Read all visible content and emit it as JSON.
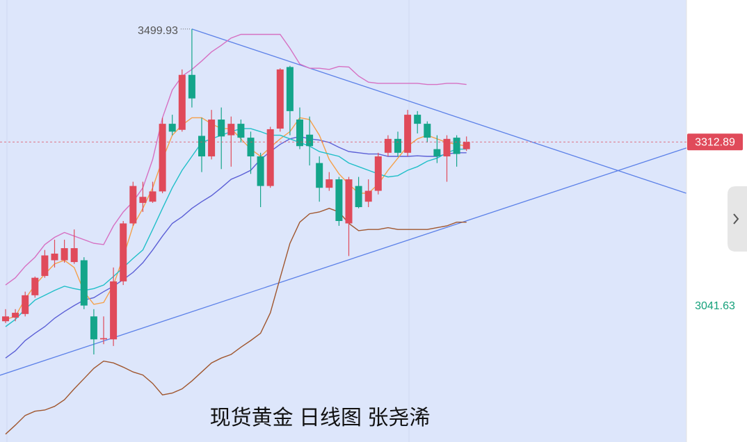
{
  "chart_data": {
    "type": "candlestick",
    "title": "现货黄金 日线图 张尧浠",
    "ylim": [
      2816,
      3548
    ],
    "up_color": "#e04a5a",
    "down_color": "#14a58a",
    "open": [
      3016,
      3022,
      3028,
      3059,
      3091,
      3117,
      3117,
      3114,
      3117,
      3024,
      2986,
      2986,
      3082,
      3178,
      3212,
      3214,
      3231,
      3343,
      3333,
      3424,
      3323,
      3289,
      3350,
      3324,
      3343,
      3320,
      3289,
      3240,
      3335,
      3437,
      3350,
      3325,
      3278,
      3237,
      3251,
      3178,
      3240,
      3214,
      3232,
      3295,
      3318,
      3295,
      3358,
      3343,
      3301,
      3289,
      3320,
      3301
    ],
    "high": [
      3036,
      3036,
      3065,
      3090,
      3134,
      3151,
      3151,
      3168,
      3122,
      3036,
      3024,
      3105,
      3182,
      3247,
      3247,
      3247,
      3353,
      3358,
      3433,
      3499.93,
      3353,
      3366,
      3370,
      3355,
      3350,
      3330,
      3295,
      3338,
      3435,
      3439,
      3370,
      3355,
      3289,
      3263,
      3255,
      3255,
      3255,
      3251,
      3295,
      3324,
      3330,
      3366,
      3364,
      3347,
      3324,
      3324,
      3324,
      3322
    ],
    "low": [
      3013,
      3016,
      3024,
      3055,
      3088,
      3105,
      3113,
      3111,
      3036,
      2961,
      2978,
      2975,
      3076,
      3174,
      3197,
      3212,
      3228,
      3324,
      3330,
      3370,
      3263,
      3284,
      3268,
      3272,
      3312,
      3260,
      3205,
      3237,
      3330,
      3324,
      3301,
      3274,
      3214,
      3232,
      3174,
      3124,
      3203,
      3205,
      3226,
      3289,
      3289,
      3289,
      3327,
      3312,
      3278,
      3247,
      3272,
      3298
    ],
    "close": [
      3024,
      3030,
      3059,
      3088,
      3125,
      3128,
      3137,
      3137,
      3042,
      2986,
      2988,
      3082,
      3178,
      3240,
      3222,
      3231,
      3343,
      3330,
      3424,
      3385,
      3289,
      3350,
      3322,
      3343,
      3320,
      3289,
      3240,
      3334,
      3433,
      3364,
      3306,
      3306,
      3237,
      3251,
      3182,
      3251,
      3205,
      3232,
      3289,
      3318,
      3295,
      3358,
      3343,
      3320,
      3289,
      3318,
      3293,
      3312.89
    ],
    "series": [
      {
        "color": "#d670c2",
        "values": [
          3076,
          3088,
          3107,
          3122,
          3143,
          3155,
          3163,
          3157,
          3151,
          3145,
          3143,
          3174,
          3197,
          3214,
          3237,
          3284,
          3353,
          3399,
          3422,
          3433,
          3447,
          3462,
          3473,
          3485,
          3491,
          3491,
          3491,
          3491,
          3491,
          3468,
          3442,
          3435,
          3435,
          3433,
          3438,
          3437,
          3422,
          3412,
          3410,
          3410,
          3410,
          3410,
          3410,
          3408,
          3408,
          3410,
          3410,
          3408
        ]
      },
      {
        "color": "#a0562e",
        "values": [
          2829,
          2844,
          2860,
          2867,
          2869,
          2875,
          2886,
          2904,
          2921,
          2938,
          2950,
          2947,
          2940,
          2932,
          2927,
          2913,
          2894,
          2897,
          2904,
          2917,
          2932,
          2947,
          2955,
          2961,
          2973,
          2984,
          2996,
          3030,
          3088,
          3145,
          3180,
          3194,
          3197,
          3203,
          3197,
          3178,
          3166,
          3168,
          3168,
          3171,
          3168,
          3168,
          3168,
          3168,
          3171,
          3174,
          3180,
          3180
        ]
      },
      {
        "color": "#5b5fd6",
        "values": [
          2955,
          2967,
          2984,
          2996,
          3007,
          3021,
          3032,
          3042,
          3051,
          3055,
          3065,
          3074,
          3085,
          3097,
          3113,
          3134,
          3157,
          3178,
          3189,
          3203,
          3214,
          3224,
          3237,
          3251,
          3258,
          3266,
          3284,
          3297,
          3309,
          3318,
          3322,
          3318,
          3316,
          3312,
          3304,
          3297,
          3295,
          3293,
          3293,
          3289,
          3289,
          3289,
          3290,
          3289,
          3289,
          3293,
          3295,
          3295
        ]
      },
      {
        "color": "#f5a04a",
        "values": [
          3019,
          3024,
          3053,
          3076,
          3094,
          3111,
          3117,
          3105,
          3065,
          3044,
          3047,
          3076,
          3122,
          3174,
          3203,
          3237,
          3284,
          3324,
          3341,
          3353,
          3353,
          3343,
          3335,
          3335,
          3318,
          3301,
          3289,
          3304,
          3318,
          3330,
          3353,
          3350,
          3324,
          3284,
          3260,
          3243,
          3228,
          3228,
          3243,
          3266,
          3286,
          3306,
          3318,
          3324,
          3318,
          3312,
          3309,
          3306
        ]
      },
      {
        "color": "#20bfc8",
        "values": [
          3007,
          3019,
          3036,
          3051,
          3059,
          3067,
          3074,
          3070,
          3067,
          3070,
          3076,
          3090,
          3105,
          3120,
          3134,
          3168,
          3203,
          3237,
          3266,
          3289,
          3312,
          3318,
          3324,
          3330,
          3335,
          3335,
          3330,
          3324,
          3324,
          3318,
          3312,
          3306,
          3297,
          3293,
          3289,
          3278,
          3272,
          3266,
          3260,
          3255,
          3257,
          3266,
          3272,
          3281,
          3286,
          3295,
          3301,
          3301
        ]
      }
    ],
    "trendlines": [
      {
        "color": "#5b80e8",
        "x": [
          19,
          69.4
        ],
        "values": [
          3499.93,
          3228
        ]
      },
      {
        "color": "#5b80e8",
        "x": [
          -0.57,
          69.43
        ],
        "values": [
          2926.5,
          3303
        ]
      }
    ],
    "high_label": 3499.93,
    "last_price": 3312.89,
    "level_label": 3041.63
  }
}
